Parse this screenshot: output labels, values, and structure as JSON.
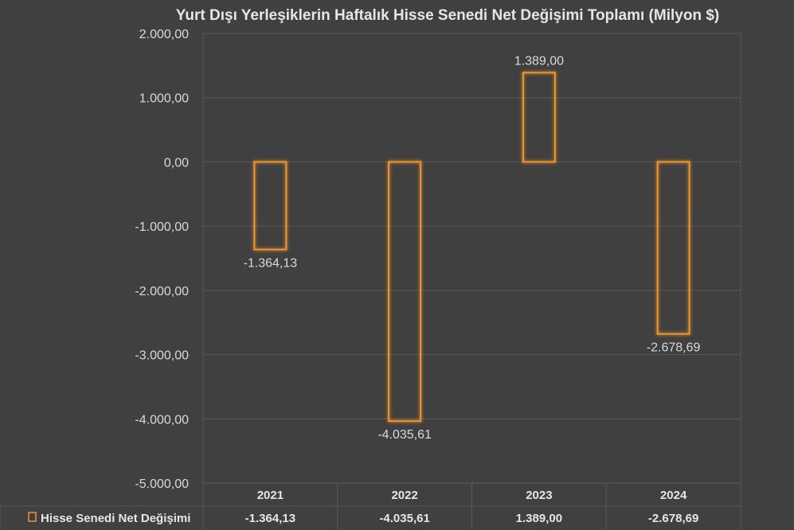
{
  "chart_data": {
    "type": "bar",
    "title": "Yurt Dışı Yerleşiklerin Haftalık Hisse Senedi Net Değişimi Toplamı (Milyon $)",
    "categories": [
      "2021",
      "2022",
      "2023",
      "2024"
    ],
    "series": [
      {
        "name": "Hisse Senedi Net Değişimi",
        "values": [
          -1364.13,
          -4035.61,
          1389.0,
          -2678.69
        ],
        "value_labels": [
          "-1.364,13",
          "-4.035,61",
          "1.389,00",
          "-2.678,69"
        ],
        "table_labels": [
          "-1.364,13",
          "-4.035,61",
          "1.389,00",
          "-2.678,69"
        ]
      }
    ],
    "ylim": [
      -5000,
      2000
    ],
    "y_ticks": [
      2000,
      1000,
      0,
      -1000,
      -2000,
      -3000,
      -4000,
      -5000
    ],
    "y_tick_labels": [
      "2.000,00",
      "1.000,00",
      "0,00",
      "-1.000,00",
      "-2.000,00",
      "-3.000,00",
      "-4.000,00",
      "-5.000,00"
    ],
    "grid": true,
    "data_table": true,
    "legend": "data-table-left",
    "colors": {
      "background": "#404040",
      "bar_outline": "#f0952a",
      "grid": "#595959",
      "text": "#d9d9d9"
    }
  }
}
